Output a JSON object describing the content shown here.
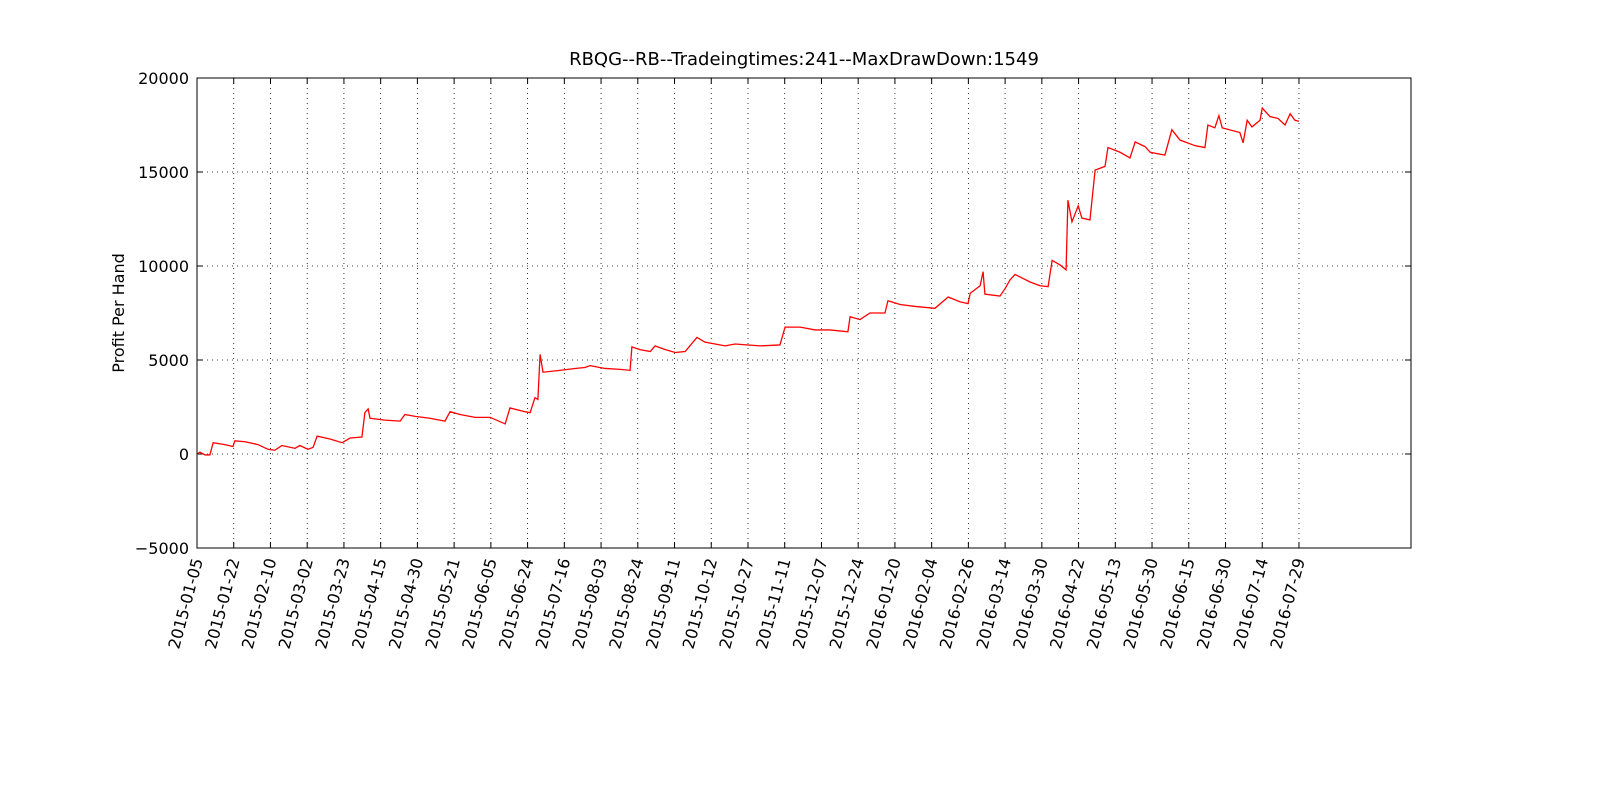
{
  "chart_data": {
    "type": "line",
    "title": "RBQG--RB--Tradeingtimes:241--MaxDrawDown:1549",
    "y_label": "Profit Per Hand",
    "color": "#ff0000",
    "grid": true,
    "xlim": [
      0,
      330.5
    ],
    "ylim": [
      -5000,
      20000
    ],
    "yticks": [
      {
        "value": -5000,
        "label": "−5000"
      },
      0,
      5000,
      10000,
      15000,
      20000
    ],
    "xticks": [
      {
        "value": 0,
        "label": "2015-01-05"
      },
      {
        "value": 10,
        "label": "2015-01-22"
      },
      {
        "value": 20,
        "label": "2015-02-10"
      },
      {
        "value": 30,
        "label": "2015-03-02"
      },
      {
        "value": 40,
        "label": "2015-03-23"
      },
      {
        "value": 50,
        "label": "2015-04-15"
      },
      {
        "value": 60,
        "label": "2015-04-30"
      },
      {
        "value": 70,
        "label": "2015-05-21"
      },
      {
        "value": 80,
        "label": "2015-06-05"
      },
      {
        "value": 90,
        "label": "2015-06-24"
      },
      {
        "value": 100,
        "label": "2015-07-16"
      },
      {
        "value": 110,
        "label": "2015-08-03"
      },
      {
        "value": 120,
        "label": "2015-08-24"
      },
      {
        "value": 130,
        "label": "2015-09-11"
      },
      {
        "value": 140,
        "label": "2015-10-12"
      },
      {
        "value": 150,
        "label": "2015-10-27"
      },
      {
        "value": 160,
        "label": "2015-11-11"
      },
      {
        "value": 170,
        "label": "2015-12-07"
      },
      {
        "value": 180,
        "label": "2015-12-24"
      },
      {
        "value": 190,
        "label": "2016-01-20"
      },
      {
        "value": 200,
        "label": "2016-02-04"
      },
      {
        "value": 210,
        "label": "2016-02-26"
      },
      {
        "value": 220,
        "label": "2016-03-14"
      },
      {
        "value": 230,
        "label": "2016-03-30"
      },
      {
        "value": 240,
        "label": "2016-04-22"
      },
      {
        "value": 250,
        "label": "2016-05-13"
      },
      {
        "value": 260,
        "label": "2016-05-30"
      },
      {
        "value": 270,
        "label": "2016-06-15"
      },
      {
        "value": 280,
        "label": "2016-06-30"
      },
      {
        "value": 290,
        "label": "2016-07-14"
      },
      {
        "value": 300,
        "label": "2016-07-29"
      }
    ],
    "x": [
      0,
      0.8,
      2.2,
      3.5,
      4.4,
      7.6,
      9.8,
      10.3,
      13.1,
      16.6,
      19.3,
      21.2,
      23.1,
      26.7,
      28,
      30.2,
      31.6,
      32.7,
      36.2,
      39.5,
      41.7,
      44.9,
      45.7,
      46.6,
      47.1,
      51.2,
      55.3,
      56.6,
      59.4,
      63.4,
      67.5,
      68.9,
      71.6,
      75.7,
      79.8,
      83.9,
      85.2,
      89.3,
      90.7,
      92,
      92.8,
      93.4,
      94.2,
      98.8,
      102.9,
      105.6,
      107,
      111.1,
      115.2,
      117.9,
      118.4,
      120.6,
      123.4,
      124.7,
      127.5,
      130.2,
      132.9,
      136.1,
      138.3,
      143.8,
      146.5,
      153.3,
      158.7,
      160.1,
      164.2,
      168.3,
      172.3,
      177.2,
      177.8,
      180.5,
      183.2,
      187.3,
      188.1,
      191.4,
      195.5,
      200.9,
      204.5,
      207.7,
      209.9,
      210.5,
      213.2,
      214,
      214.5,
      218.6,
      220,
      221.3,
      222.7,
      226.8,
      229.5,
      231.7,
      232.8,
      235,
      236.6,
      237.1,
      238.2,
      239.9,
      240.9,
      243.1,
      244.5,
      247.2,
      248,
      251.3,
      254,
      255.4,
      258.1,
      259.5,
      263.5,
      265.4,
      267.6,
      271.7,
      274.4,
      275.2,
      277.1,
      278.2,
      279.1,
      283.9,
      284.8,
      285.9,
      287.2,
      289.4,
      290,
      292.1,
      294.3,
      296.2,
      297.6,
      298.9,
      300
    ],
    "values": [
      0,
      100,
      -50,
      -50,
      600,
      500,
      400,
      700,
      650,
      500,
      250,
      200,
      450,
      300,
      450,
      250,
      350,
      950,
      800,
      600,
      850,
      900,
      2200,
      2400,
      1900,
      1800,
      1750,
      2100,
      2000,
      1900,
      1750,
      2250,
      2100,
      1950,
      1950,
      1600,
      2450,
      2250,
      2200,
      3000,
      2900,
      5300,
      4350,
      4450,
      4550,
      4600,
      4700,
      4550,
      4500,
      4450,
      5700,
      5550,
      5450,
      5750,
      5550,
      5400,
      5450,
      6200,
      5950,
      5750,
      5850,
      5750,
      5800,
      6750,
      6750,
      6600,
      6600,
      6500,
      7300,
      7150,
      7500,
      7500,
      8150,
      7950,
      7850,
      7750,
      8350,
      8100,
      8000,
      8550,
      8950,
      9700,
      8500,
      8400,
      8800,
      9250,
      9550,
      9150,
      8950,
      8900,
      10300,
      10050,
      9800,
      13500,
      12350,
      13200,
      12550,
      12450,
      15100,
      15300,
      16300,
      16050,
      15750,
      16600,
      16350,
      16050,
      15900,
      17250,
      16700,
      16400,
      16300,
      17500,
      17350,
      18000,
      17350,
      17100,
      16550,
      17750,
      17400,
      17750,
      18400,
      17950,
      17850,
      17500,
      18100,
      17750,
      17700
    ]
  }
}
